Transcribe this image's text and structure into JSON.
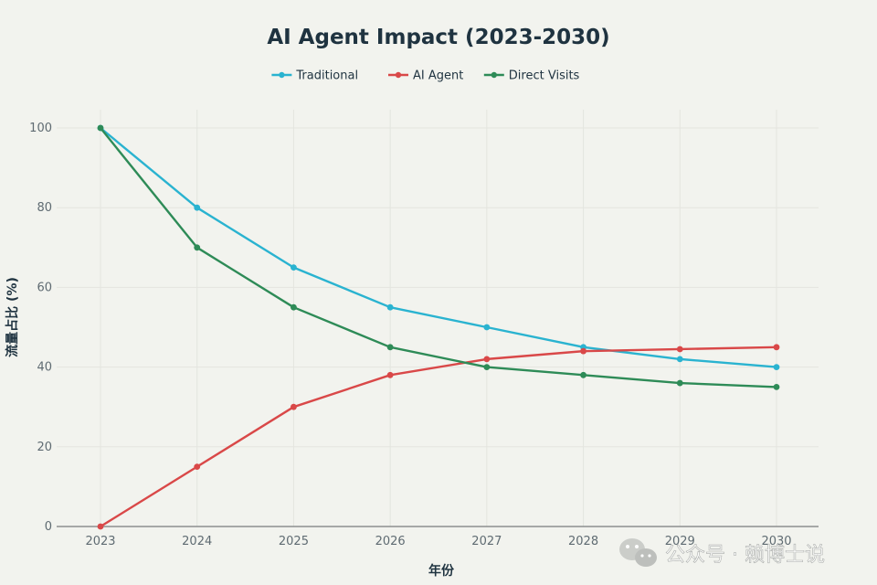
{
  "chart_data": {
    "type": "line",
    "title": "AI Agent Impact (2023-2030)",
    "xlabel": "年份",
    "ylabel": "流量占比 (%)",
    "categories": [
      "2023",
      "2024",
      "2025",
      "2026",
      "2027",
      "2028",
      "2029",
      "2030"
    ],
    "ylim": [
      0,
      105
    ],
    "yticks": [
      0,
      20,
      40,
      60,
      80,
      100
    ],
    "grid": true,
    "legend_position": "top-center",
    "series": [
      {
        "name": "Traditional",
        "color": "#2ab3d0",
        "values": [
          100,
          80,
          65,
          55,
          50,
          45,
          42,
          40
        ]
      },
      {
        "name": "AI Agent",
        "color": "#d94848",
        "values": [
          0,
          15,
          30,
          38,
          42,
          44,
          44.5,
          45
        ]
      },
      {
        "name": "Direct Visits",
        "color": "#2e8b57",
        "values": [
          100,
          70,
          55,
          45,
          40,
          38,
          36,
          35
        ]
      }
    ]
  },
  "watermark": {
    "text": "公众号 · 赖博士说",
    "icon": "wechat-icon"
  }
}
